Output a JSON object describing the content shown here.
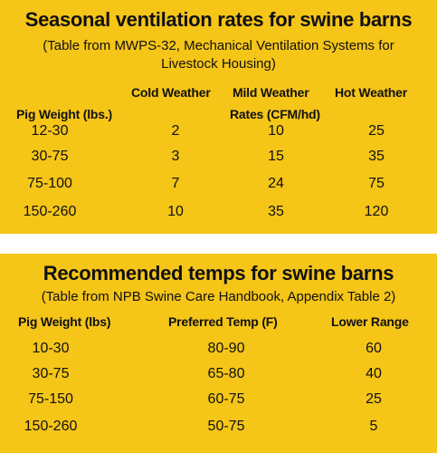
{
  "table1": {
    "title": "Seasonal ventilation rates for swine barns",
    "subtitle_line1": "(Table from MWPS-32, Mechanical Ventilation Systems for",
    "subtitle_line2": "Livestock Housing)",
    "headers": {
      "cold": "Cold Weather",
      "mild": "Mild Weather",
      "hot": "Hot Weather",
      "pig_weight": "Pig Weight (lbs.)",
      "rates": "Rates (CFM/hd)"
    },
    "rows": [
      [
        "12-30",
        "2",
        "10",
        "25"
      ],
      [
        "30-75",
        "3",
        "15",
        "35"
      ],
      [
        "75-100",
        "7",
        "24",
        "75"
      ],
      [
        "150-260",
        "10",
        "35",
        "120"
      ]
    ]
  },
  "table2": {
    "title": "Recommended temps for swine barns",
    "subtitle": "(Table from NPB Swine Care Handbook, Appendix Table 2)",
    "headers": {
      "pig_weight": "Pig Weight (lbs)",
      "preferred": "Preferred Temp (F)",
      "lower": "Lower Range"
    },
    "rows": [
      [
        "10-30",
        "80-90",
        "60"
      ],
      [
        "30-75",
        "65-80",
        "40"
      ],
      [
        "75-150",
        "60-75",
        "25"
      ],
      [
        "150-260",
        "50-75",
        "5"
      ]
    ]
  },
  "colors": {
    "panel": "#f5c518",
    "text": "#111111",
    "gap": "#ffffff"
  }
}
